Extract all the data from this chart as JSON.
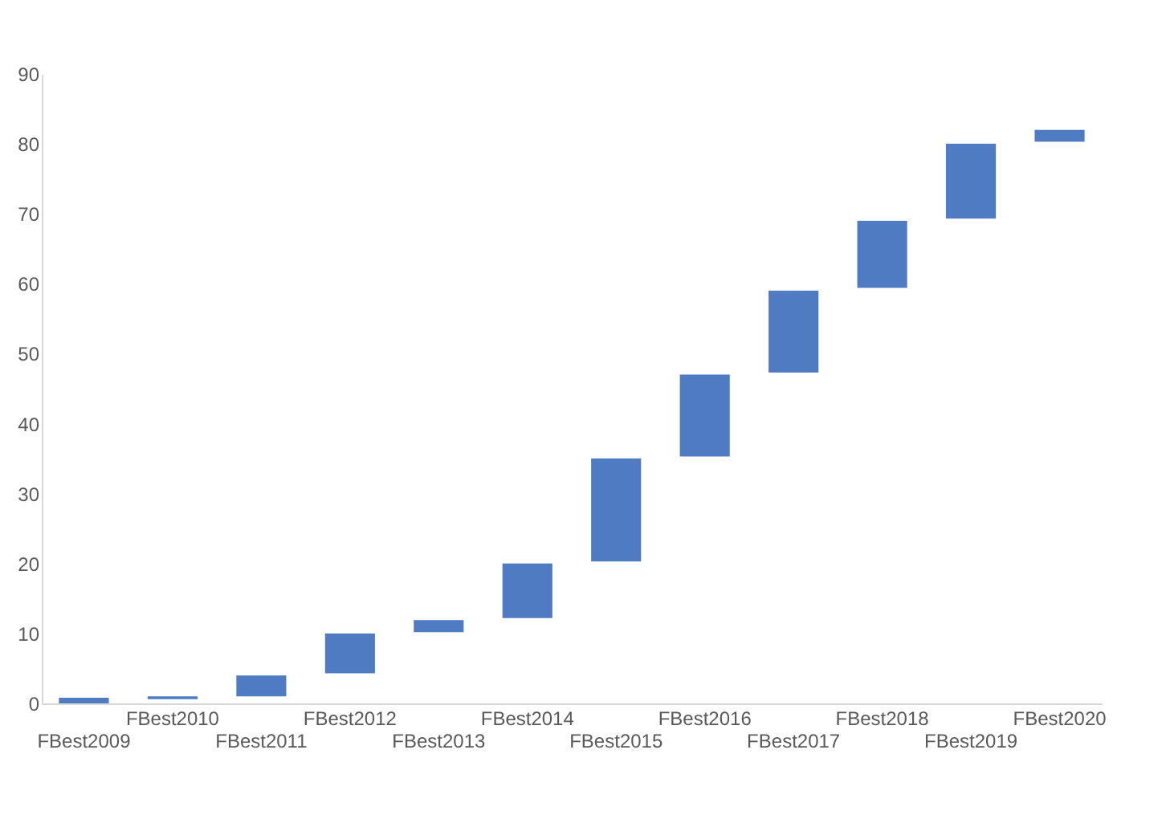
{
  "chart_data": {
    "type": "bar",
    "categories": [
      "FBest2009",
      "FBest2010",
      "FBest2011",
      "FBest2012",
      "FBest2013",
      "FBest2014",
      "FBest2015",
      "FBest2016",
      "FBest2017",
      "FBest2018",
      "FBest2019",
      "FBest2020"
    ],
    "base": [
      0,
      0.6,
      1,
      4.3,
      10.2,
      12.2,
      20.3,
      35.3,
      47.3,
      59.4,
      69.3,
      80.3
    ],
    "values": [
      0.8,
      0.4,
      3,
      5.7,
      1.7,
      7.8,
      14.7,
      11.7,
      11.7,
      9.6,
      10.7,
      1.7
    ],
    "color": "#4e7bc1",
    "ylim": [
      0,
      90
    ],
    "yticks": [
      0,
      10,
      20,
      30,
      40,
      50,
      60,
      70,
      80,
      90
    ],
    "grid": false
  }
}
